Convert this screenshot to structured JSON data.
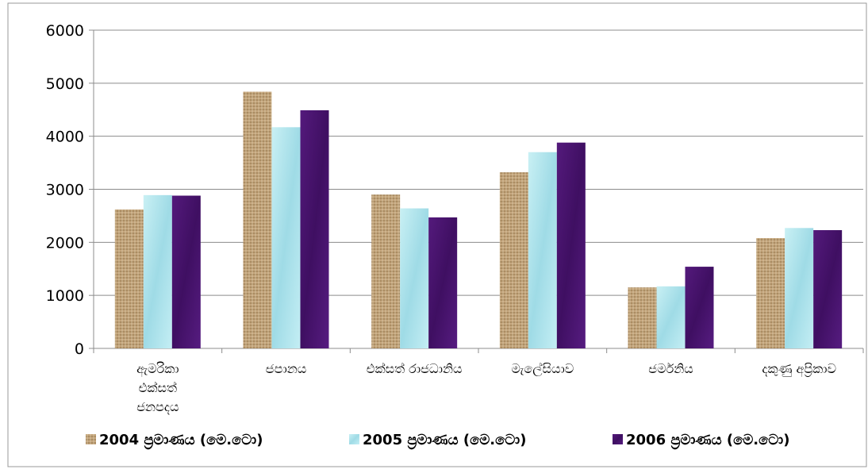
{
  "chart_data": {
    "type": "bar",
    "categories": [
      "ඇමරිකා එක්සත් ජනපදය",
      "ජපානය",
      "එක්සත් රාජධානිය",
      "මැලේසියාව",
      "ජර්මනිය",
      "දකුණු අප්‍රිකාව"
    ],
    "series": [
      {
        "name": "2004 ප්‍රමාණය (මෙ.ටො)",
        "values": [
          2620,
          4840,
          2900,
          3320,
          1150,
          2080
        ],
        "color": "#bfa27a"
      },
      {
        "name": "2005 ප්‍රමාණය (මෙ.ටො)",
        "values": [
          2890,
          4170,
          2640,
          3700,
          1170,
          2270
        ],
        "color": "#aee4ec"
      },
      {
        "name": "2006 ප්‍රමාණය (මෙ.ටො)",
        "values": [
          2880,
          4490,
          2470,
          3880,
          1540,
          2230
        ],
        "color": "#4a1470"
      }
    ],
    "yticks": [
      "0",
      "1000",
      "2000",
      "3000",
      "4000",
      "5000",
      "6000"
    ],
    "ylim": [
      0,
      6000
    ],
    "grid": true,
    "legend_position": "bottom"
  }
}
